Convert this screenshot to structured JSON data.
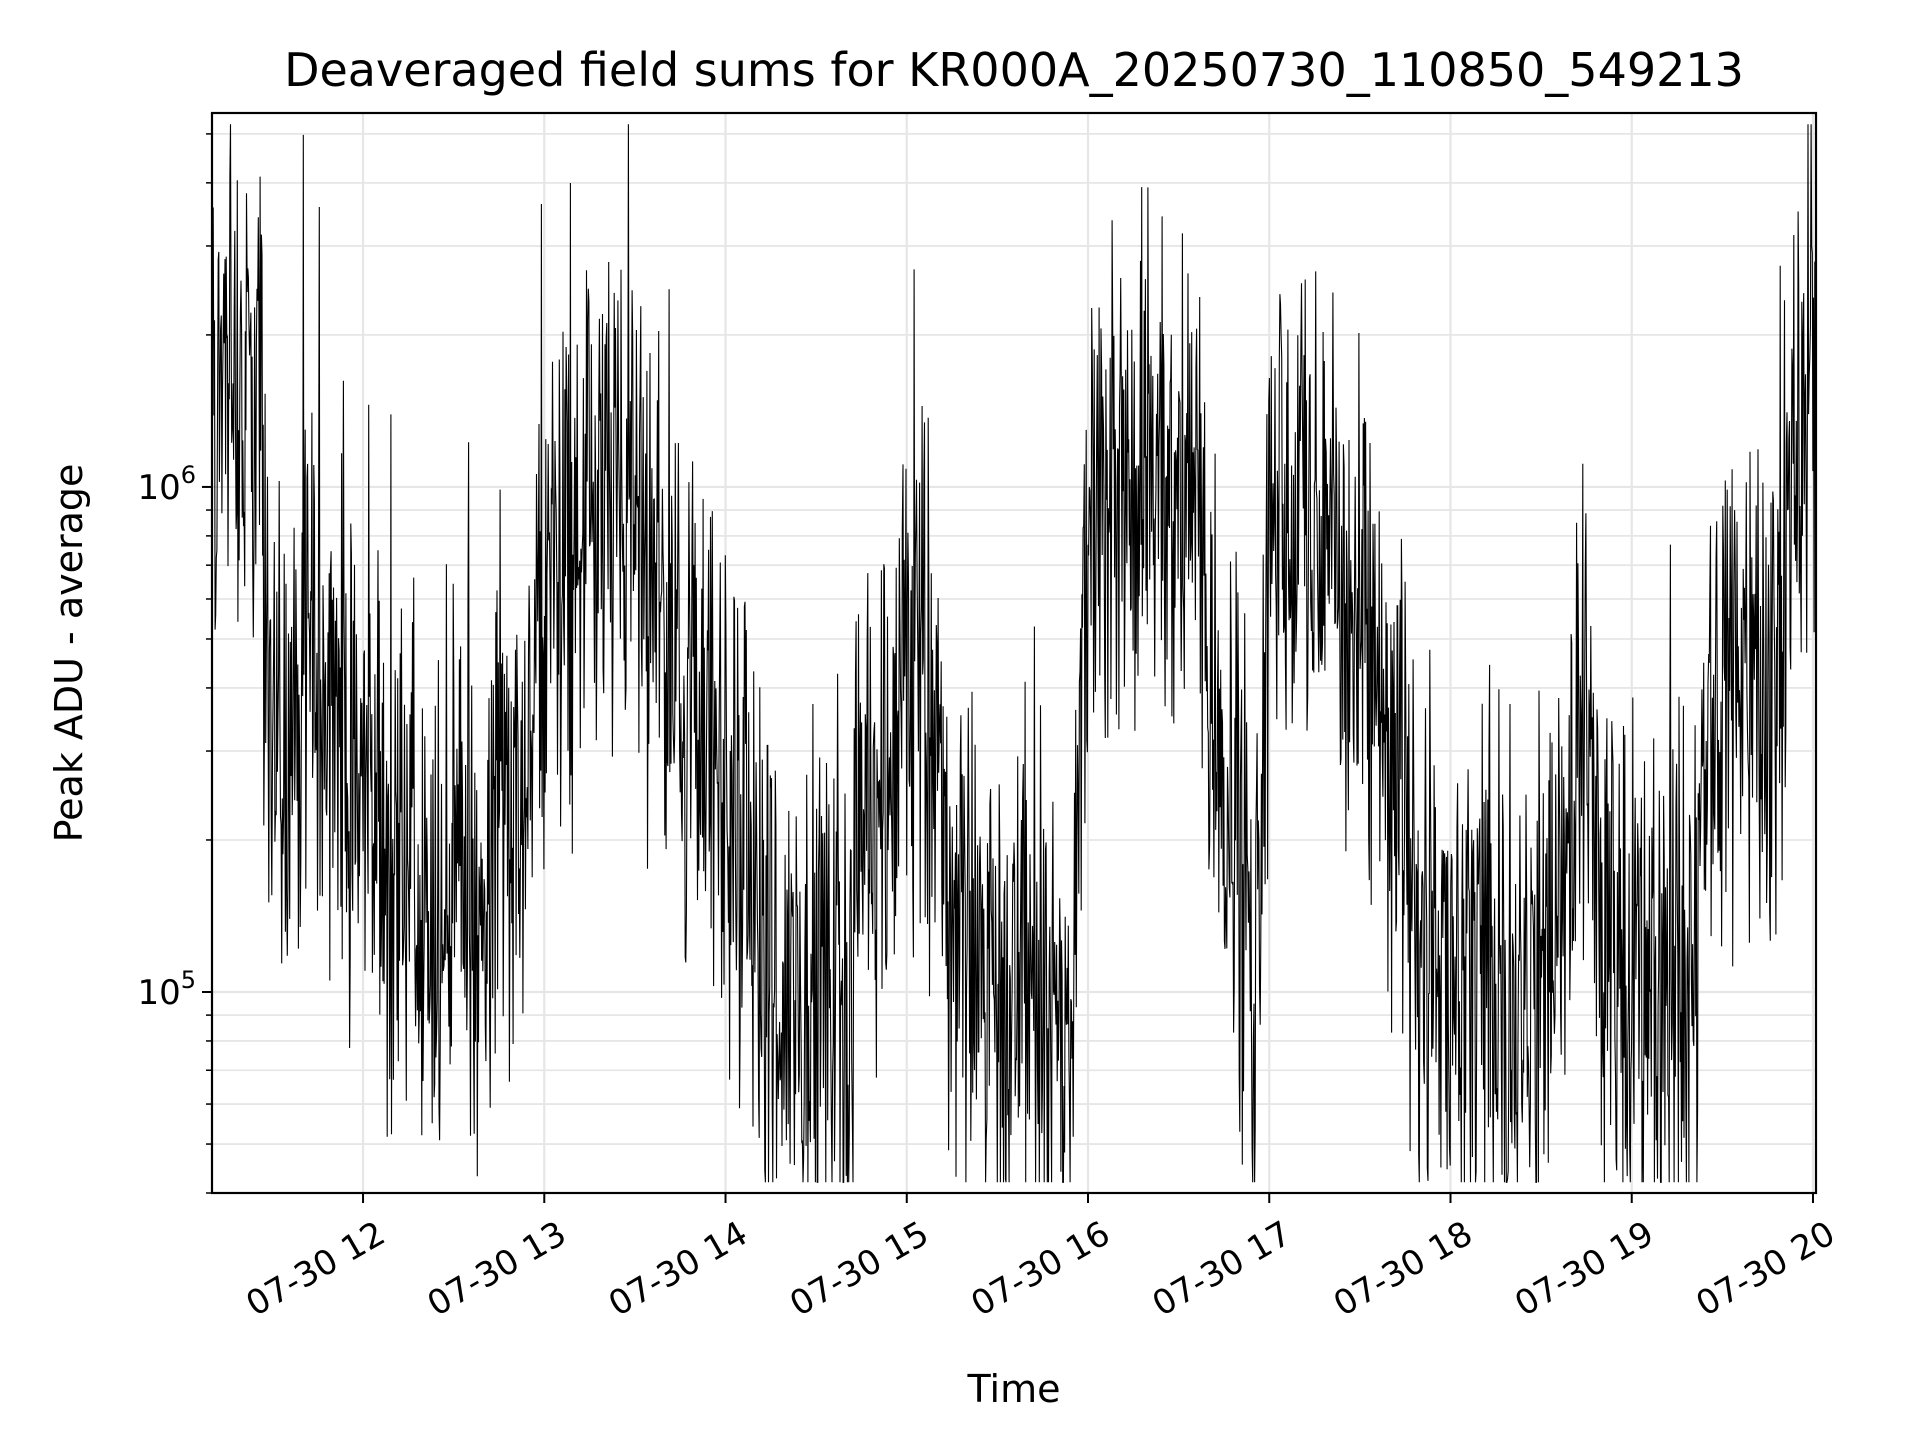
{
  "chart_data": {
    "type": "line",
    "title": "Deaveraged field sums for KR000A_20250730_110850_549213",
    "xlabel": "Time",
    "ylabel": "Peak ADU - average",
    "yscale": "log",
    "grid": true,
    "xlim": [
      "2025-07-30 11:10",
      "2025-07-30 20:01"
    ],
    "ylim": [
      40000,
      5500000
    ],
    "x_ticks": [
      "07-30 12",
      "07-30 13",
      "07-30 14",
      "07-30 15",
      "07-30 16",
      "07-30 17",
      "07-30 18",
      "07-30 19",
      "07-30 20"
    ],
    "y_ticks": [
      {
        "value": 100000,
        "base": "10",
        "exp": "5"
      },
      {
        "value": 1000000,
        "base": "10",
        "exp": "6"
      }
    ],
    "line_color": "#000000",
    "series": [
      {
        "x": [
          "2025-07-30 11:10",
          "2025-07-30 11:15",
          "2025-07-30 11:20",
          "2025-07-30 11:25",
          "2025-07-30 11:30",
          "2025-07-30 11:35",
          "2025-07-30 11:40",
          "2025-07-30 11:45",
          "2025-07-30 11:50",
          "2025-07-30 11:55",
          "2025-07-30 12:00",
          "2025-07-30 12:05",
          "2025-07-30 12:10",
          "2025-07-30 12:15",
          "2025-07-30 12:20",
          "2025-07-30 12:25",
          "2025-07-30 12:30",
          "2025-07-30 12:35",
          "2025-07-30 12:40",
          "2025-07-30 12:45",
          "2025-07-30 12:50",
          "2025-07-30 12:55",
          "2025-07-30 13:00",
          "2025-07-30 13:05",
          "2025-07-30 13:10",
          "2025-07-30 13:15",
          "2025-07-30 13:20",
          "2025-07-30 13:25",
          "2025-07-30 13:30",
          "2025-07-30 13:35",
          "2025-07-30 13:40",
          "2025-07-30 13:45",
          "2025-07-30 13:50",
          "2025-07-30 13:55",
          "2025-07-30 14:00",
          "2025-07-30 14:05",
          "2025-07-30 14:10",
          "2025-07-30 14:15",
          "2025-07-30 14:20",
          "2025-07-30 14:25",
          "2025-07-30 14:30",
          "2025-07-30 14:35",
          "2025-07-30 14:40",
          "2025-07-30 14:45",
          "2025-07-30 14:50",
          "2025-07-30 14:55",
          "2025-07-30 15:00",
          "2025-07-30 15:05",
          "2025-07-30 15:10",
          "2025-07-30 15:15",
          "2025-07-30 15:20",
          "2025-07-30 15:25",
          "2025-07-30 15:30",
          "2025-07-30 15:35",
          "2025-07-30 15:40",
          "2025-07-30 15:45",
          "2025-07-30 15:50",
          "2025-07-30 15:55",
          "2025-07-30 16:00",
          "2025-07-30 16:05",
          "2025-07-30 16:10",
          "2025-07-30 16:15",
          "2025-07-30 16:20",
          "2025-07-30 16:25",
          "2025-07-30 16:30",
          "2025-07-30 16:35",
          "2025-07-30 16:40",
          "2025-07-30 16:45",
          "2025-07-30 16:50",
          "2025-07-30 16:55",
          "2025-07-30 17:00",
          "2025-07-30 17:05",
          "2025-07-30 17:10",
          "2025-07-30 17:15",
          "2025-07-30 17:20",
          "2025-07-30 17:25",
          "2025-07-30 17:30",
          "2025-07-30 17:35",
          "2025-07-30 17:40",
          "2025-07-30 17:45",
          "2025-07-30 17:50",
          "2025-07-30 17:55",
          "2025-07-30 18:00",
          "2025-07-30 18:05",
          "2025-07-30 18:10",
          "2025-07-30 18:15",
          "2025-07-30 18:20",
          "2025-07-30 18:25",
          "2025-07-30 18:30",
          "2025-07-30 18:35",
          "2025-07-30 18:40",
          "2025-07-30 18:45",
          "2025-07-30 18:50",
          "2025-07-30 18:55",
          "2025-07-30 19:00",
          "2025-07-30 19:05",
          "2025-07-30 19:10",
          "2025-07-30 19:15",
          "2025-07-30 19:20",
          "2025-07-30 19:25",
          "2025-07-30 19:30",
          "2025-07-30 19:35",
          "2025-07-30 19:40",
          "2025-07-30 19:45",
          "2025-07-30 19:50",
          "2025-07-30 19:55",
          "2025-07-30 20:00"
        ],
        "y": [
          1500000,
          1700000,
          1600000,
          1400000,
          350000,
          300000,
          400000,
          450000,
          350000,
          300000,
          250000,
          200000,
          150000,
          200000,
          120000,
          110000,
          200000,
          150000,
          110000,
          300000,
          200000,
          300000,
          600000,
          650000,
          700000,
          800000,
          900000,
          850000,
          800000,
          700000,
          500000,
          400000,
          350000,
          300000,
          250000,
          200000,
          150000,
          110000,
          100000,
          90000,
          100000,
          95000,
          90000,
          200000,
          250000,
          300000,
          400000,
          500000,
          300000,
          150000,
          120000,
          110000,
          100000,
          110000,
          115000,
          105000,
          110000,
          100000,
          800000,
          850000,
          900000,
          950000,
          1000000,
          950000,
          1000000,
          900000,
          500000,
          300000,
          200000,
          110000,
          800000,
          850000,
          900000,
          850000,
          800000,
          600000,
          500000,
          400000,
          300000,
          200000,
          150000,
          120000,
          110000,
          100000,
          95000,
          90000,
          100000,
          95000,
          100000,
          200000,
          250000,
          300000,
          150000,
          110000,
          100000,
          95000,
          100000,
          110000,
          115000,
          300000,
          400000,
          450000,
          500000,
          400000,
          600000,
          1300000,
          1500000
        ]
      }
    ]
  }
}
